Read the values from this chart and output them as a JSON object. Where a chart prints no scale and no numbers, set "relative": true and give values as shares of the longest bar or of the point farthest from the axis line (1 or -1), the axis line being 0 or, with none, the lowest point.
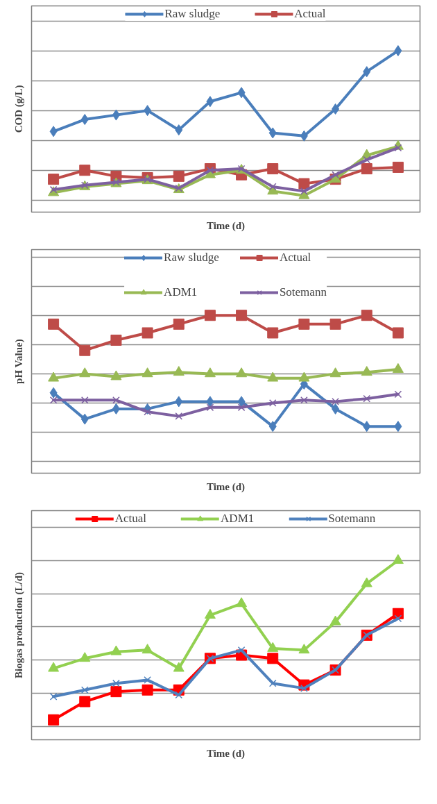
{
  "chart_data": [
    {
      "type": "line",
      "relative": true,
      "ylabel": "COD (g/L)",
      "xlabel": "Time (d)",
      "grid": "y",
      "legend": "top",
      "line_style": "solid",
      "categories": [
        null,
        null,
        null,
        null,
        null,
        null,
        null,
        null,
        null,
        null,
        null,
        null
      ],
      "series": [
        {
          "name": "Raw sludge",
          "color": "#4a7ebb",
          "marker": "diamond",
          "values": [
            0.46,
            0.54,
            0.57,
            0.6,
            0.47,
            0.66,
            0.72,
            0.45,
            0.43,
            0.61,
            0.86,
            1.0
          ]
        },
        {
          "name": "Actual",
          "color": "#be4b48",
          "marker": "square",
          "values": [
            0.14,
            0.2,
            0.16,
            0.15,
            0.16,
            0.21,
            0.17,
            0.21,
            0.11,
            0.14,
            0.21,
            0.22
          ]
        },
        {
          "color": "#98b954",
          "marker": "triangle",
          "values": [
            0.05,
            0.09,
            0.11,
            0.13,
            0.07,
            0.17,
            0.2,
            0.06,
            0.03,
            0.14,
            0.3,
            0.36
          ]
        },
        {
          "color": "#7d60a0",
          "marker": "cross",
          "values": [
            0.07,
            0.1,
            0.12,
            0.14,
            0.08,
            0.2,
            0.21,
            0.09,
            0.06,
            0.17,
            0.27,
            0.35
          ]
        }
      ]
    },
    {
      "type": "line",
      "relative": true,
      "ylabel": "pH Value)",
      "xlabel": "Time (d)",
      "grid": "y",
      "legend": "top",
      "line_style": "solid",
      "categories": [
        null,
        null,
        null,
        null,
        null,
        null,
        null,
        null,
        null,
        null,
        null,
        null
      ],
      "series": [
        {
          "name": "Raw sludge",
          "color": "#4a7ebb",
          "marker": "diamond",
          "values": [
            0.47,
            0.29,
            0.36,
            0.36,
            0.41,
            0.41,
            0.41,
            0.24,
            0.53,
            0.36,
            0.24,
            0.24
          ]
        },
        {
          "name": "Actual",
          "color": "#be4b48",
          "marker": "square",
          "values": [
            0.94,
            0.76,
            0.83,
            0.88,
            0.94,
            1.0,
            1.0,
            0.88,
            0.94,
            0.94,
            1.0,
            0.88
          ]
        },
        {
          "name": "ADM1",
          "color": "#98b954",
          "marker": "triangle",
          "values": [
            0.57,
            0.6,
            0.58,
            0.6,
            0.61,
            0.6,
            0.6,
            0.57,
            0.57,
            0.6,
            0.61,
            0.63
          ]
        },
        {
          "name": "Sotemann",
          "color": "#7d60a0",
          "marker": "cross",
          "values": [
            0.42,
            0.42,
            0.42,
            0.34,
            0.31,
            0.37,
            0.37,
            0.4,
            0.42,
            0.41,
            0.43,
            0.46
          ]
        }
      ]
    },
    {
      "type": "line",
      "relative": true,
      "ylabel": "Biogas production (L/d)",
      "xlabel": "Time (d)",
      "grid": "y",
      "legend": "top",
      "line_style": "solid",
      "categories": [
        null,
        null,
        null,
        null,
        null,
        null,
        null,
        null,
        null,
        null,
        null,
        null
      ],
      "series": [
        {
          "name": "Actual",
          "color": "#ff0000",
          "marker": "square",
          "values": [
            0.04,
            0.15,
            0.21,
            0.22,
            0.22,
            0.41,
            0.43,
            0.41,
            0.25,
            0.34,
            0.55,
            0.68
          ]
        },
        {
          "name": "ADM1",
          "color": "#92d050",
          "marker": "triangle",
          "values": [
            0.35,
            0.41,
            0.45,
            0.46,
            0.35,
            0.67,
            0.74,
            0.47,
            0.46,
            0.63,
            0.86,
            1.0
          ]
        },
        {
          "name": "Sotemann",
          "color": "#4f81bd",
          "marker": "cross",
          "values": [
            0.18,
            0.22,
            0.26,
            0.28,
            0.19,
            0.41,
            0.46,
            0.26,
            0.23,
            0.34,
            0.55,
            0.65
          ]
        }
      ]
    }
  ]
}
